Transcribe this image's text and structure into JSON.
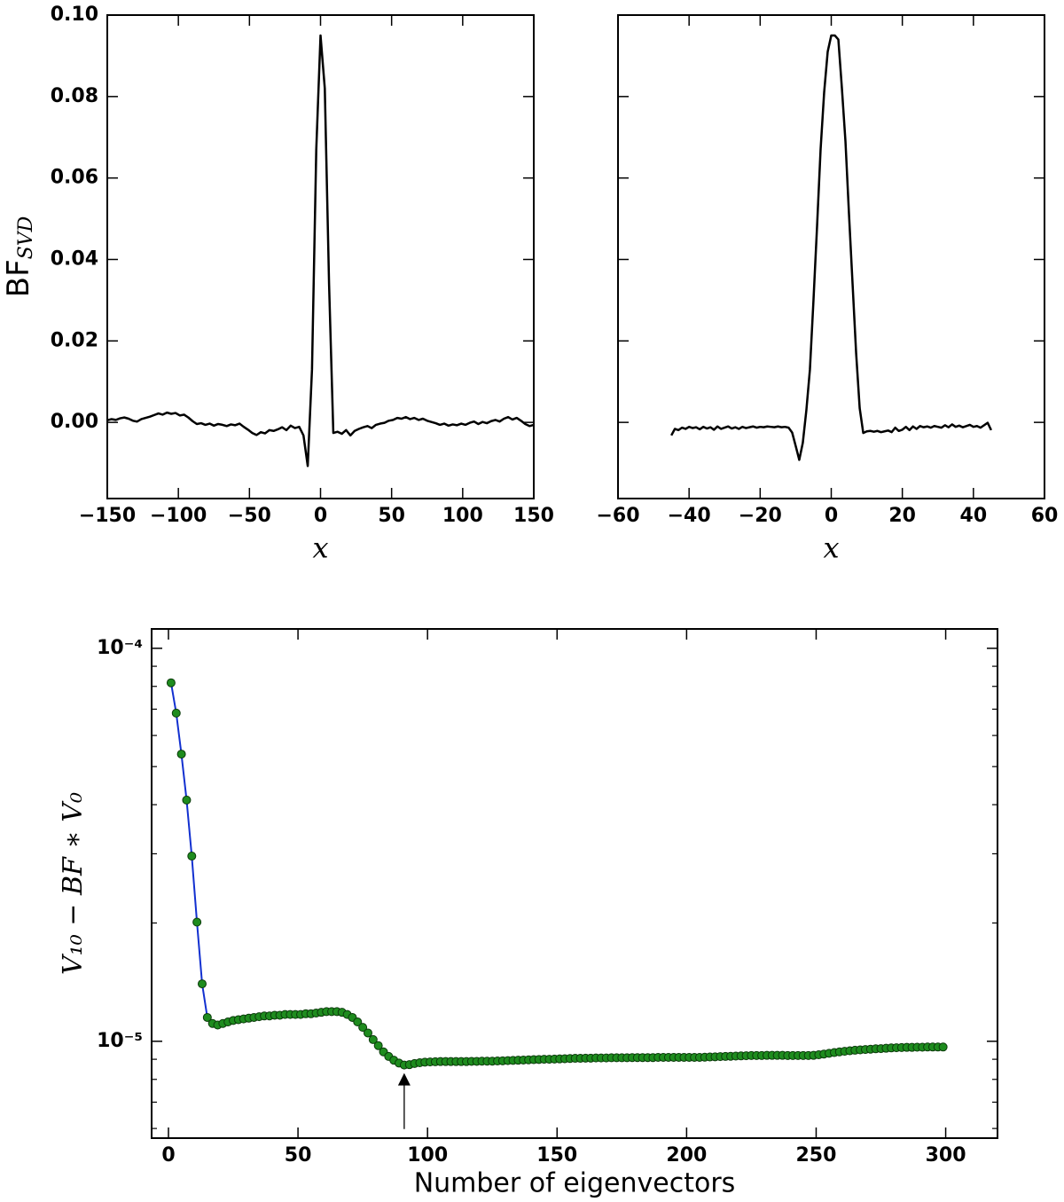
{
  "chart_data": [
    {
      "type": "line",
      "color": "#000000",
      "ylabel": {
        "text": "BF",
        "sub": "SVD"
      },
      "xlabel": "x",
      "xlim": [
        -150,
        150
      ],
      "ylim": [
        -0.0187,
        0.1
      ],
      "xticks": [
        {
          "value": -150,
          "label": "−150"
        },
        {
          "value": -100,
          "label": "−100"
        },
        {
          "value": -50,
          "label": "−50"
        },
        0,
        50,
        100,
        150
      ],
      "yticks": [
        {
          "value": 0,
          "label": "0.00"
        },
        0.02,
        0.04,
        0.06,
        0.08,
        {
          "value": 0.1,
          "label": "0.10"
        }
      ],
      "x": [
        -150,
        -147,
        -144,
        -141,
        -138,
        -135,
        -132,
        -129,
        -126,
        -123,
        -120,
        -117,
        -114,
        -111,
        -108,
        -105,
        -102,
        -99,
        -96,
        -93,
        -90,
        -87,
        -84,
        -81,
        -78,
        -75,
        -72,
        -69,
        -66,
        -63,
        -60,
        -57,
        -54,
        -51,
        -48,
        -45,
        -42,
        -39,
        -36,
        -33,
        -30,
        -27,
        -24,
        -21,
        -18,
        -15,
        -12,
        -9,
        -6,
        -3,
        0,
        3,
        6,
        9,
        12,
        15,
        18,
        21,
        24,
        27,
        30,
        33,
        36,
        39,
        42,
        45,
        48,
        51,
        54,
        57,
        60,
        63,
        66,
        69,
        72,
        75,
        78,
        81,
        84,
        87,
        90,
        93,
        96,
        99,
        102,
        105,
        108,
        111,
        114,
        117,
        120,
        123,
        126,
        129,
        132,
        135,
        138,
        141,
        144,
        147,
        150
      ],
      "values": [
        0.0005,
        0.0008,
        0.0006,
        0.001,
        0.0012,
        0.0009,
        0.0004,
        0.0002,
        0.0008,
        0.0011,
        0.0014,
        0.0018,
        0.0022,
        0.0019,
        0.0024,
        0.0021,
        0.0023,
        0.0017,
        0.0019,
        0.0012,
        0.0003,
        -0.0004,
        -0.0002,
        -0.0006,
        -0.0003,
        -0.0008,
        -0.0004,
        -0.0006,
        -0.0009,
        -0.0005,
        -0.0007,
        -0.0003,
        -0.0011,
        -0.0018,
        -0.0026,
        -0.0031,
        -0.0024,
        -0.0027,
        -0.0019,
        -0.0021,
        -0.0017,
        -0.0012,
        -0.0019,
        -0.0008,
        -0.0014,
        -0.0011,
        -0.0032,
        -0.0107,
        0.013,
        0.067,
        0.095,
        0.082,
        0.034,
        -0.0026,
        -0.0023,
        -0.0028,
        -0.0019,
        -0.0032,
        -0.0021,
        -0.0016,
        -0.0012,
        -0.0009,
        -0.0014,
        -0.0006,
        -0.0003,
        -0.0001,
        0.0004,
        0.0006,
        0.0011,
        0.0009,
        0.0013,
        0.0008,
        0.0011,
        0.0006,
        0.0009,
        0.0004,
        0.0001,
        -0.0002,
        -0.0006,
        -0.0003,
        -0.0008,
        -0.0005,
        -0.0007,
        -0.0003,
        -0.0006,
        -0.0001,
        0.0002,
        -0.0004,
        0.0001,
        -0.0002,
        0.0003,
        0.0006,
        0.0002,
        0.0009,
        0.0013,
        0.0007,
        0.0011,
        0.0004,
        -0.0004,
        -0.0009,
        -0.0006
      ]
    },
    {
      "type": "line",
      "color": "#000000",
      "xlabel": "x",
      "show_ytick_labels": false,
      "xlim": [
        -60,
        60
      ],
      "ylim": [
        -0.0187,
        0.1
      ],
      "xticks": [
        {
          "value": -60,
          "label": "−60"
        },
        {
          "value": -40,
          "label": "−40"
        },
        {
          "value": -20,
          "label": "−20"
        },
        0,
        20,
        40,
        60
      ],
      "yticks": [
        0,
        0.02,
        0.04,
        0.06,
        0.08,
        0.1
      ],
      "x": [
        -45,
        -44,
        -43,
        -42,
        -41,
        -40,
        -39,
        -38,
        -37,
        -36,
        -35,
        -34,
        -33,
        -32,
        -31,
        -30,
        -29,
        -28,
        -27,
        -26,
        -25,
        -24,
        -23,
        -22,
        -21,
        -20,
        -19,
        -18,
        -17,
        -16,
        -15,
        -14,
        -13,
        -12,
        -11,
        -10,
        -9,
        -8,
        -7,
        -6,
        -5,
        -4,
        -3,
        -2,
        -1,
        0,
        1,
        2,
        3,
        4,
        5,
        6,
        7,
        8,
        9,
        10,
        11,
        12,
        13,
        14,
        15,
        16,
        17,
        18,
        19,
        20,
        21,
        22,
        23,
        24,
        25,
        26,
        27,
        28,
        29,
        30,
        31,
        32,
        33,
        34,
        35,
        36,
        37,
        38,
        39,
        40,
        41,
        42,
        43,
        44,
        45
      ],
      "values": [
        -0.0032,
        -0.0016,
        -0.0019,
        -0.0013,
        -0.0016,
        -0.0011,
        -0.0014,
        -0.0012,
        -0.0017,
        -0.0011,
        -0.0015,
        -0.0012,
        -0.0018,
        -0.001,
        -0.0016,
        -0.0013,
        -0.001,
        -0.0015,
        -0.0012,
        -0.0016,
        -0.0011,
        -0.0014,
        -0.0012,
        -0.001,
        -0.0013,
        -0.0011,
        -0.0012,
        -0.001,
        -0.0011,
        -0.0012,
        -0.001,
        -0.0012,
        -0.0011,
        -0.0013,
        -0.0025,
        -0.0058,
        -0.0092,
        -0.005,
        0.003,
        0.013,
        0.03,
        0.048,
        0.067,
        0.081,
        0.091,
        0.095,
        0.095,
        0.094,
        0.082,
        0.069,
        0.051,
        0.034,
        0.017,
        0.0035,
        -0.0026,
        -0.0022,
        -0.0021,
        -0.0023,
        -0.0021,
        -0.0024,
        -0.0022,
        -0.002,
        -0.0024,
        -0.0013,
        -0.0021,
        -0.0018,
        -0.0011,
        -0.0019,
        -0.001,
        -0.0016,
        -0.0009,
        -0.0012,
        -0.001,
        -0.0013,
        -0.0009,
        -0.0011,
        -0.0013,
        -0.0007,
        -0.0012,
        -0.0005,
        -0.0011,
        -0.0008,
        -0.0012,
        -0.0009,
        -0.0006,
        -0.0011,
        -0.0009,
        -0.0013,
        -0.0007,
        -0.0001,
        -0.0019
      ]
    },
    {
      "type": "line",
      "color": "#1230d0",
      "marker_color": "#1e8c1e",
      "log_y": true,
      "xlabel": "Number of eigenvectors",
      "ylabel": "V₁₀ − BF ∗ V₀",
      "xlim": [
        -6.5,
        320
      ],
      "ylim": [
        5.67e-06,
        0.000112
      ],
      "xticks": [
        0,
        50,
        100,
        150,
        200,
        250,
        300
      ],
      "yticks": [
        {
          "value": 0.0001,
          "label": "10⁻⁴"
        },
        {
          "value": 1e-05,
          "label": "10⁻⁵"
        }
      ],
      "yminorticks": [
        6e-06,
        7e-06,
        8e-06,
        9e-06,
        2e-05,
        3e-05,
        4e-05,
        5e-05,
        6e-05,
        7e-05,
        8e-05,
        9e-05
      ],
      "annotation_arrow": {
        "xy": [
          91,
          8.3e-06
        ],
        "xytext": [
          91,
          5.98e-06
        ]
      },
      "x": [
        1,
        3,
        5,
        7,
        9,
        11,
        13,
        15,
        17,
        19,
        21,
        23,
        25,
        27,
        29,
        31,
        33,
        35,
        37,
        39,
        41,
        43,
        45,
        47,
        49,
        51,
        53,
        55,
        57,
        59,
        61,
        63,
        65,
        67,
        69,
        71,
        73,
        75,
        77,
        79,
        81,
        83,
        85,
        87,
        89,
        91,
        93,
        95,
        97,
        99,
        101,
        103,
        105,
        107,
        109,
        111,
        113,
        115,
        117,
        119,
        121,
        123,
        125,
        127,
        129,
        131,
        133,
        135,
        137,
        139,
        141,
        143,
        145,
        147,
        149,
        151,
        153,
        155,
        157,
        159,
        161,
        163,
        165,
        167,
        169,
        171,
        173,
        175,
        177,
        179,
        181,
        183,
        185,
        187,
        189,
        191,
        193,
        195,
        197,
        199,
        201,
        203,
        205,
        207,
        209,
        211,
        213,
        215,
        217,
        219,
        221,
        223,
        225,
        227,
        229,
        231,
        233,
        235,
        237,
        239,
        241,
        243,
        245,
        247,
        249,
        251,
        253,
        255,
        257,
        259,
        261,
        263,
        265,
        267,
        269,
        271,
        273,
        275,
        277,
        279,
        281,
        283,
        285,
        287,
        289,
        291,
        293,
        295,
        297,
        299
      ],
      "values": [
        8.17e-05,
        6.84e-05,
        5.38e-05,
        4.11e-05,
        2.96e-05,
        2.01e-05,
        1.4e-05,
        1.15e-05,
        1.11e-05,
        1.1e-05,
        1.11e-05,
        1.12e-05,
        1.13e-05,
        1.135e-05,
        1.14e-05,
        1.145e-05,
        1.15e-05,
        1.155e-05,
        1.16e-05,
        1.16e-05,
        1.165e-05,
        1.165e-05,
        1.17e-05,
        1.17e-05,
        1.17e-05,
        1.17e-05,
        1.175e-05,
        1.175e-05,
        1.18e-05,
        1.185e-05,
        1.19e-05,
        1.19e-05,
        1.19e-05,
        1.185e-05,
        1.17e-05,
        1.15e-05,
        1.12e-05,
        1.085e-05,
        1.05e-05,
        1.01e-05,
        9.75e-06,
        9.4e-06,
        9.15e-06,
        8.95e-06,
        8.8e-06,
        8.7e-06,
        8.72e-06,
        8.78e-06,
        8.82e-06,
        8.85e-06,
        8.86e-06,
        8.87e-06,
        8.88e-06,
        8.88e-06,
        8.88e-06,
        8.88e-06,
        8.88e-06,
        8.88e-06,
        8.89e-06,
        8.89e-06,
        8.9e-06,
        8.9e-06,
        8.9e-06,
        8.91e-06,
        8.92e-06,
        8.93e-06,
        8.94e-06,
        8.95e-06,
        8.96e-06,
        8.97e-06,
        8.98e-06,
        8.99e-06,
        9e-06,
        9e-06,
        9.01e-06,
        9.02e-06,
        9.03e-06,
        9.04e-06,
        9.05e-06,
        9.05e-06,
        9.06e-06,
        9.06e-06,
        9.07e-06,
        9.07e-06,
        9.07e-06,
        9.08e-06,
        9.08e-06,
        9.08e-06,
        9.08e-06,
        9.09e-06,
        9.09e-06,
        9.09e-06,
        9.09e-06,
        9.09e-06,
        9.1e-06,
        9.1e-06,
        9.1e-06,
        9.1e-06,
        9.1e-06,
        9.1e-06,
        9.1e-06,
        9.1e-06,
        9.1e-06,
        9.11e-06,
        9.12e-06,
        9.13e-06,
        9.14e-06,
        9.15e-06,
        9.16e-06,
        9.17e-06,
        9.18e-06,
        9.19e-06,
        9.2e-06,
        9.2e-06,
        9.2e-06,
        9.21e-06,
        9.21e-06,
        9.21e-06,
        9.21e-06,
        9.2e-06,
        9.2e-06,
        9.2e-06,
        9.2e-06,
        9.2e-06,
        9.21e-06,
        9.24e-06,
        9.28e-06,
        9.32e-06,
        9.36e-06,
        9.4e-06,
        9.43e-06,
        9.46e-06,
        9.49e-06,
        9.51e-06,
        9.53e-06,
        9.55e-06,
        9.57e-06,
        9.58e-06,
        9.6e-06,
        9.62e-06,
        9.63e-06,
        9.64e-06,
        9.65e-06,
        9.65e-06,
        9.66e-06,
        9.66e-06,
        9.67e-06,
        9.67e-06,
        9.67e-06,
        9.67e-06
      ]
    }
  ]
}
